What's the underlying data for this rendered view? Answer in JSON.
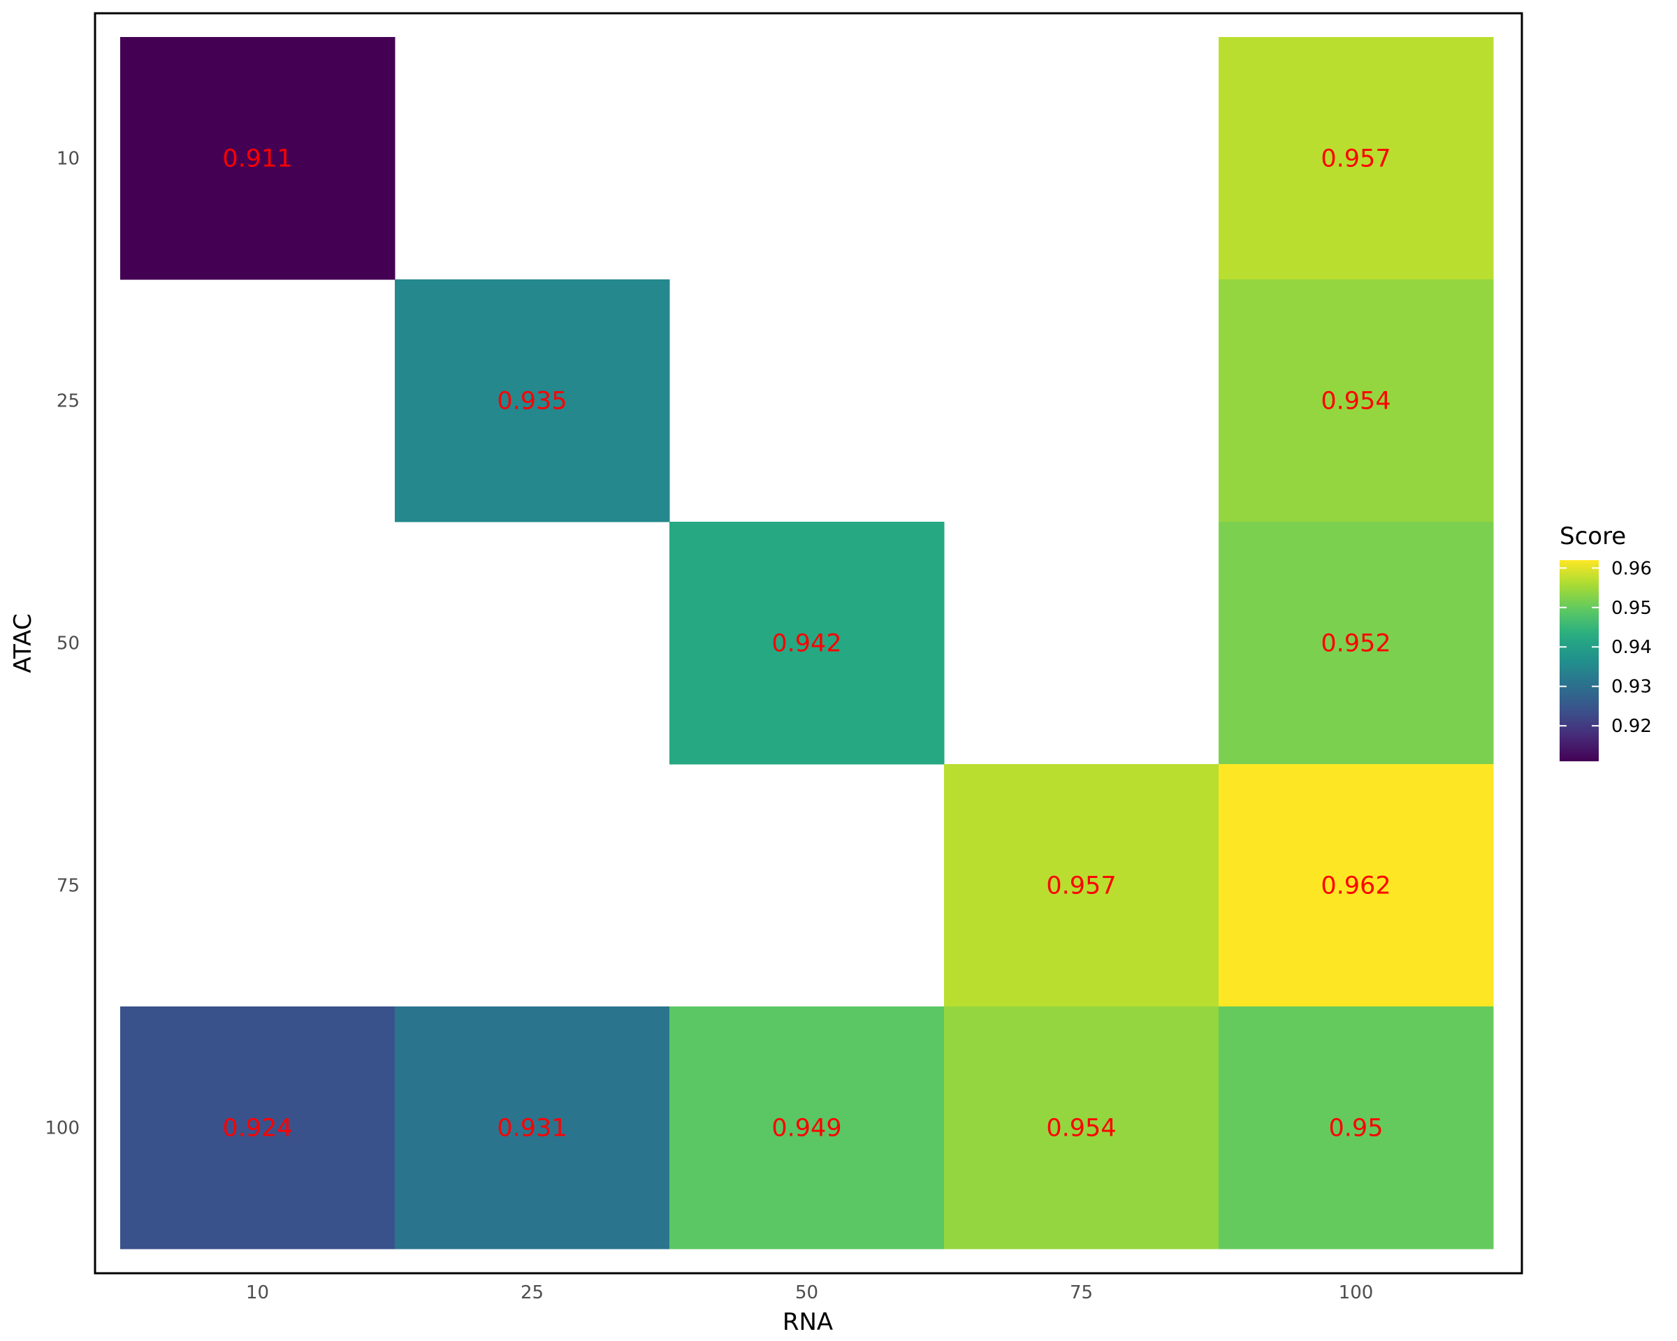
{
  "chart_data": {
    "type": "heatmap",
    "xlabel": "RNA",
    "ylabel": "ATAC",
    "x_categories": [
      "10",
      "25",
      "50",
      "75",
      "100"
    ],
    "y_categories": [
      "10",
      "25",
      "50",
      "75",
      "100"
    ],
    "cells": [
      {
        "x": "10",
        "y": "10",
        "value": 0.911,
        "label": "0.911"
      },
      {
        "x": "100",
        "y": "10",
        "value": 0.957,
        "label": "0.957"
      },
      {
        "x": "25",
        "y": "25",
        "value": 0.935,
        "label": "0.935"
      },
      {
        "x": "100",
        "y": "25",
        "value": 0.954,
        "label": "0.954"
      },
      {
        "x": "50",
        "y": "50",
        "value": 0.942,
        "label": "0.942"
      },
      {
        "x": "100",
        "y": "50",
        "value": 0.952,
        "label": "0.952"
      },
      {
        "x": "75",
        "y": "75",
        "value": 0.957,
        "label": "0.957"
      },
      {
        "x": "100",
        "y": "75",
        "value": 0.962,
        "label": "0.962"
      },
      {
        "x": "10",
        "y": "100",
        "value": 0.924,
        "label": "0.924"
      },
      {
        "x": "25",
        "y": "100",
        "value": 0.931,
        "label": "0.931"
      },
      {
        "x": "50",
        "y": "100",
        "value": 0.949,
        "label": "0.949"
      },
      {
        "x": "75",
        "y": "100",
        "value": 0.954,
        "label": "0.954"
      },
      {
        "x": "100",
        "y": "100",
        "value": 0.95,
        "label": "0.95"
      }
    ],
    "legend": {
      "title": "Score",
      "placement": "right",
      "range": [
        0.911,
        0.962
      ],
      "ticks": [
        0.92,
        0.93,
        0.94,
        0.95,
        0.96
      ],
      "tick_labels": [
        "0.92",
        "0.93",
        "0.94",
        "0.95",
        "0.96"
      ]
    },
    "colormap": "viridis",
    "label_color": "#ff0000",
    "grid": false,
    "panel_border": true
  }
}
